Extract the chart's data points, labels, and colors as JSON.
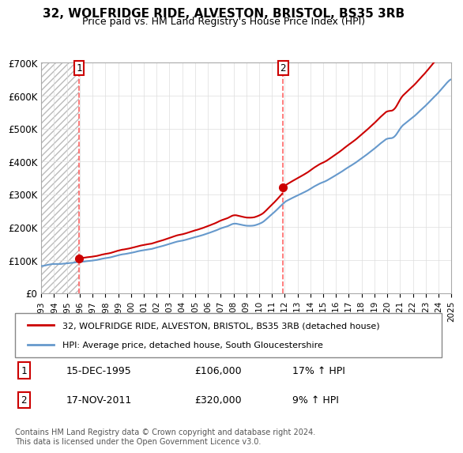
{
  "title": "32, WOLFRIDGE RIDE, ALVESTON, BRISTOL, BS35 3RB",
  "subtitle": "Price paid vs. HM Land Registry's House Price Index (HPI)",
  "ylim": [
    0,
    700000
  ],
  "yticks": [
    0,
    100000,
    200000,
    300000,
    400000,
    500000,
    600000,
    700000
  ],
  "ytick_labels": [
    "£0",
    "£100K",
    "£200K",
    "£300K",
    "£400K",
    "£500K",
    "£600K",
    "£700K"
  ],
  "purchase1": {
    "date": "1995-12-15",
    "price": 106000,
    "label": "1",
    "hpi_pct": "17%"
  },
  "purchase2": {
    "date": "2011-11-17",
    "price": 320000,
    "label": "2",
    "hpi_pct": "9%"
  },
  "legend_line1": "32, WOLFRIDGE RIDE, ALVESTON, BRISTOL, BS35 3RB (detached house)",
  "legend_line2": "HPI: Average price, detached house, South Gloucestershire",
  "table_row1": "15-DEC-1995        £106,000        17% ↑ HPI",
  "table_row2": "17-NOV-2011        £320,000        9% ↑ HPI",
  "footer": "Contains HM Land Registry data © Crown copyright and database right 2024.\nThis data is licensed under the Open Government Licence v3.0.",
  "line_color_red": "#cc0000",
  "line_color_blue": "#6699cc",
  "bg_hatch_color": "#cccccc",
  "vline_color": "#ff6666",
  "marker_color": "#cc0000"
}
